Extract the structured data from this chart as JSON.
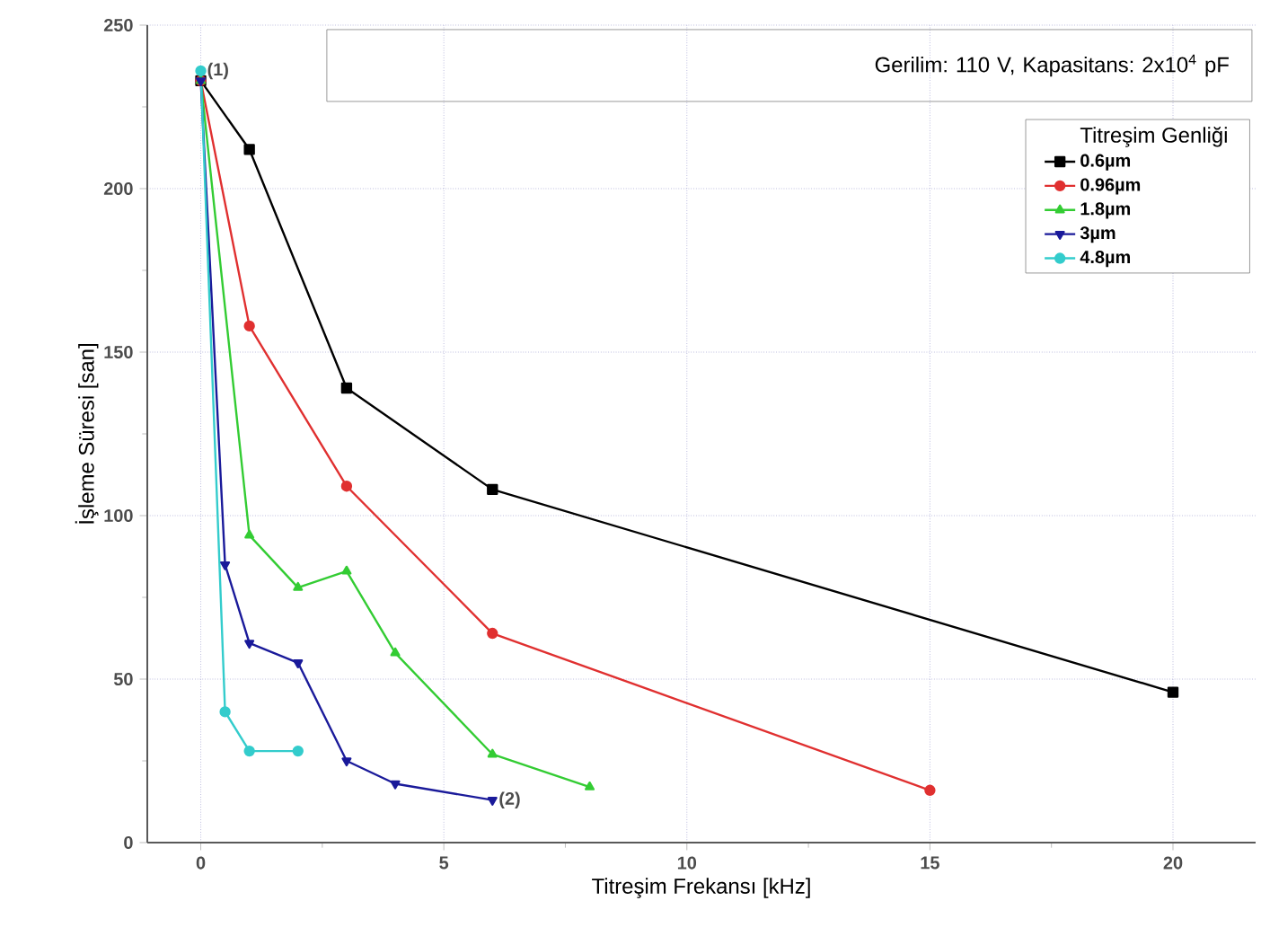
{
  "chart_data": {
    "type": "line",
    "xlabel": "Titreşim Frekansı [kHz]",
    "ylabel": "İşleme Süresi [san]",
    "legend_title": "Titreşim Genliği",
    "xlim": [
      -1.1,
      21.7
    ],
    "ylim": [
      0,
      250
    ],
    "xticks": [
      0,
      5,
      10,
      15,
      20
    ],
    "yticks": [
      0,
      50,
      100,
      150,
      200,
      250
    ],
    "grid": true,
    "legend": "top right",
    "annotations": [
      "Gerilim: 110 V, Kapasitans: 2x10$^{4}$ pF",
      {
        "text": "(1)",
        "x": 0,
        "y": 236
      },
      {
        "text": "(2)",
        "x": 6,
        "y": 13
      }
    ],
    "series": [
      {
        "name": "0.6µm",
        "color": "#000000",
        "marker": "square",
        "x": [
          0,
          1,
          3,
          6,
          20
        ],
        "values": [
          233,
          212,
          139,
          108,
          46
        ]
      },
      {
        "name": "0.96µm",
        "color": "#e03030",
        "marker": "circle",
        "x": [
          0,
          1,
          3,
          6,
          15
        ],
        "values": [
          233,
          158,
          109,
          64,
          16
        ]
      },
      {
        "name": "1.8µm",
        "color": "#33cc33",
        "marker": "triangle",
        "x": [
          0,
          1,
          2,
          3,
          4,
          6,
          8
        ],
        "values": [
          233,
          94,
          78,
          83,
          58,
          27,
          17
        ]
      },
      {
        "name": "3µm",
        "color": "#1a1a9a",
        "marker": "triangle-down",
        "x": [
          0,
          0.5,
          1,
          2,
          3,
          4,
          6
        ],
        "values": [
          233,
          85,
          61,
          55,
          25,
          18,
          13
        ]
      },
      {
        "name": "4.8µm",
        "color": "#33cccc",
        "marker": "circle",
        "x": [
          0,
          0.5,
          1,
          2
        ],
        "values": [
          236,
          40,
          28,
          28
        ]
      }
    ]
  }
}
